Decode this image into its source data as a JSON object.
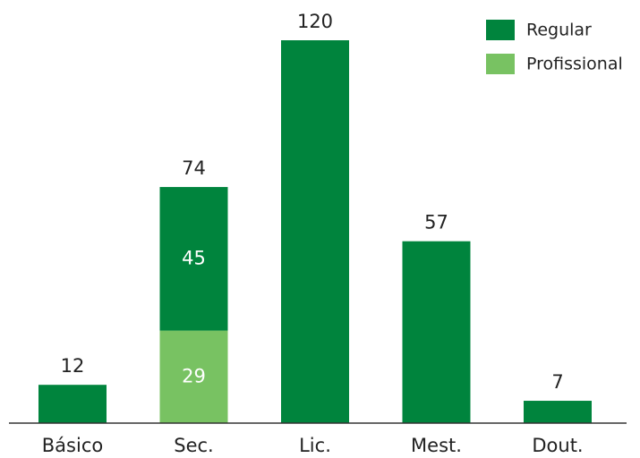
{
  "chart_data": {
    "type": "stacked_bar",
    "categories": [
      "Básico",
      "Sec.",
      "Lic.",
      "Mest.",
      "Dout."
    ],
    "series": [
      {
        "name": "Regular",
        "color": "#00843d",
        "values": [
          12,
          45,
          120,
          57,
          7
        ]
      },
      {
        "name": "Profissional",
        "color": "#78c262",
        "values": [
          null,
          29,
          null,
          null,
          null
        ]
      }
    ],
    "totals": [
      12,
      74,
      120,
      57,
      7
    ],
    "legend": "upper right"
  }
}
